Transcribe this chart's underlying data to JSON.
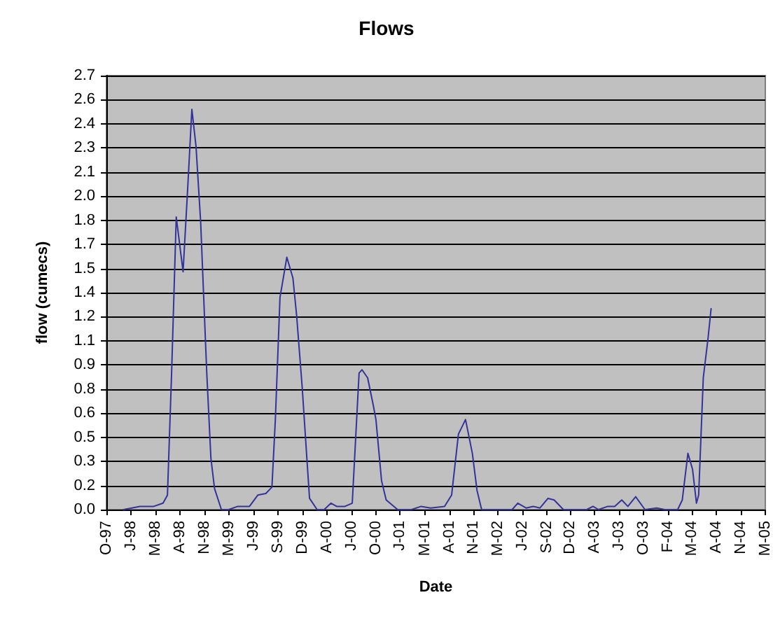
{
  "chart_data": {
    "type": "line",
    "title": "Flows",
    "xlabel": "Date",
    "ylabel": "flow (cumecs)",
    "series": [
      {
        "color": "#333399",
        "x": [
          "1997-12-27",
          "1998-03-04",
          "1998-04-02",
          "1998-04-30",
          "1998-06-07",
          "1998-06-25",
          "1998-07-12",
          "1998-07-31",
          "1998-08-28",
          "1998-09-17",
          "1998-10-03",
          "1998-10-20",
          "1998-11-08",
          "1998-12-03",
          "1998-12-20",
          "1999-01-04",
          "1999-02-01",
          "1999-03-03",
          "1999-04-09",
          "1999-04-28",
          "1999-05-27",
          "1999-06-30",
          "1999-08-02",
          "1999-08-27",
          "1999-09-10",
          "1999-09-29",
          "1999-10-27",
          "1999-11-21",
          "1999-12-06",
          "1999-12-29",
          "2000-01-17",
          "2000-01-28",
          "2000-02-28",
          "2000-03-28",
          "2000-04-25",
          "2000-05-18",
          "2000-06-21",
          "2000-07-21",
          "2000-08-18",
          "2000-08-30",
          "2000-09-22",
          "2000-10-15",
          "2000-10-26",
          "2000-11-18",
          "2000-12-07",
          "2001-01-23",
          "2001-03-21",
          "2001-04-29",
          "2001-06-07",
          "2001-08-03",
          "2001-09-01",
          "2001-09-29",
          "2001-10-28",
          "2001-11-25",
          "2001-12-14",
          "2002-01-02",
          "2002-05-07",
          "2002-05-30",
          "2002-07-03",
          "2002-08-01",
          "2002-08-29",
          "2002-10-01",
          "2002-10-26",
          "2002-12-03",
          "2003-03-09",
          "2003-04-03",
          "2003-04-26",
          "2003-06-03",
          "2003-07-01",
          "2003-07-30",
          "2003-08-24",
          "2003-09-25",
          "2003-11-02",
          "2003-12-20",
          "2004-01-22",
          "2004-03-15",
          "2004-04-03",
          "2004-04-26",
          "2004-05-15",
          "2004-05-31",
          "2004-06-09",
          "2004-06-28",
          "2004-07-17",
          "2004-07-30"
        ],
        "values": [
          0,
          0.02,
          0.02,
          0.02,
          0.04,
          0.09,
          0.85,
          1.82,
          1.48,
          2.03,
          2.49,
          2.26,
          1.79,
          0.85,
          0.32,
          0.13,
          0,
          0,
          0.02,
          0.02,
          0.02,
          0.09,
          0.1,
          0.14,
          0.56,
          1.32,
          1.57,
          1.44,
          1.21,
          0.76,
          0.32,
          0.07,
          0,
          0,
          0.04,
          0.02,
          0.02,
          0.04,
          0.85,
          0.87,
          0.82,
          0.65,
          0.56,
          0.18,
          0.06,
          0,
          0,
          0.02,
          0.01,
          0.02,
          0.09,
          0.47,
          0.56,
          0.35,
          0.12,
          0,
          0,
          0.04,
          0.01,
          0.02,
          0.01,
          0.07,
          0.06,
          0,
          0,
          0.02,
          0,
          0.02,
          0.02,
          0.06,
          0.02,
          0.08,
          0,
          0.01,
          0,
          0,
          0.06,
          0.35,
          0.25,
          0.04,
          0.09,
          0.82,
          1.06,
          1.25
        ]
      }
    ],
    "xlim": [
      "1997-10-18",
      "2005-03-09"
    ],
    "xticks": [
      {
        "value": "1997-10-18",
        "label": "O-97"
      },
      {
        "value": "1998-01-26",
        "label": "J-98"
      },
      {
        "value": "1998-05-07",
        "label": "M-98"
      },
      {
        "value": "1998-08-15",
        "label": "A-98"
      },
      {
        "value": "1998-11-23",
        "label": "N-98"
      },
      {
        "value": "1999-03-04",
        "label": "M-99"
      },
      {
        "value": "1999-06-12",
        "label": "J-99"
      },
      {
        "value": "1999-09-20",
        "label": "S-99"
      },
      {
        "value": "1999-12-29",
        "label": "D-99"
      },
      {
        "value": "2000-04-08",
        "label": "A-00"
      },
      {
        "value": "2000-07-17",
        "label": "J-00"
      },
      {
        "value": "2000-10-25",
        "label": "O-00"
      },
      {
        "value": "2001-01-31",
        "label": "J-01"
      },
      {
        "value": "2001-05-14",
        "label": "M-01"
      },
      {
        "value": "2001-08-22",
        "label": "A-01"
      },
      {
        "value": "2001-11-30",
        "label": "N-01"
      },
      {
        "value": "2002-03-10",
        "label": "M-02"
      },
      {
        "value": "2002-06-18",
        "label": "J-02"
      },
      {
        "value": "2002-09-26",
        "label": "S-02"
      },
      {
        "value": "2002-12-31",
        "label": "D-02"
      },
      {
        "value": "2003-04-09",
        "label": "A-03"
      },
      {
        "value": "2003-07-18",
        "label": "J-03"
      },
      {
        "value": "2003-10-26",
        "label": "O-03"
      },
      {
        "value": "2004-02-03",
        "label": "F-04"
      },
      {
        "value": "2004-05-13",
        "label": "M-04"
      },
      {
        "value": "2004-08-21",
        "label": "A-04"
      },
      {
        "value": "2004-11-29",
        "label": "N-04"
      },
      {
        "value": "2005-03-09",
        "label": "M-05"
      }
    ],
    "ylim": [
      0,
      2.7
    ],
    "yticks": [
      {
        "value": 0,
        "label": "0.0"
      },
      {
        "value": 0.15,
        "label": "0.2"
      },
      {
        "value": 0.3,
        "label": "0.3"
      },
      {
        "value": 0.45,
        "label": "0.5"
      },
      {
        "value": 0.6,
        "label": "0.6"
      },
      {
        "value": 0.75,
        "label": "0.8"
      },
      {
        "value": 0.9,
        "label": "0.9"
      },
      {
        "value": 1.05,
        "label": "1.1"
      },
      {
        "value": 1.2,
        "label": "1.2"
      },
      {
        "value": 1.35,
        "label": "1.4"
      },
      {
        "value": 1.5,
        "label": "1.5"
      },
      {
        "value": 1.65,
        "label": "1.7"
      },
      {
        "value": 1.8,
        "label": "1.8"
      },
      {
        "value": 1.95,
        "label": "2.0"
      },
      {
        "value": 2.1,
        "label": "2.1"
      },
      {
        "value": 2.25,
        "label": "2.3"
      },
      {
        "value": 2.4,
        "label": "2.4"
      },
      {
        "value": 2.55,
        "label": "2.6"
      },
      {
        "value": 2.7,
        "label": "2.7"
      }
    ],
    "grid": "y",
    "marker": "none",
    "line_style": "solid"
  }
}
